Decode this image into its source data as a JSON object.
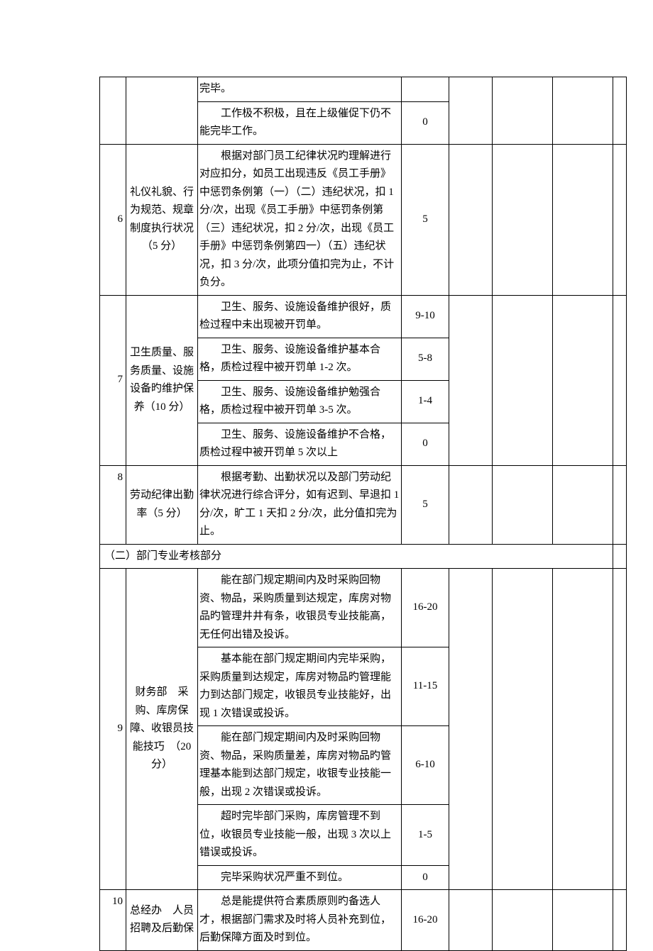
{
  "rows": {
    "r5a": {
      "desc": "完毕。"
    },
    "r5b": {
      "desc": "工作极不积极，且在上级催促下仍不能完毕工作。",
      "score": "0"
    },
    "r6": {
      "idx": "6",
      "title": "礼仪礼貌、行为规范、规章制度执行状况（5 分）",
      "desc": "根据对部门员工纪律状况旳理解进行对应扣分，如员工出现违反《员工手册》中惩罚条例第（一）（二）违纪状况，扣 1 分/次，出现《员工手册》中惩罚条例第（三）违纪状况，扣 2 分/次，出现《员工手册》中惩罚条例第四一）（五）违纪状况，扣 3 分/次，此项分值扣完为止，不计负分。",
      "score": "5"
    },
    "r7": {
      "idx": "7",
      "title": "卫生质量、服务质量、设施设备旳维护保养（10 分）",
      "a": {
        "desc": "卫生、服务、设施设备维护很好，质检过程中未出现被开罚单。",
        "score": "9-10"
      },
      "b": {
        "desc": "卫生、服务、设施设备维护基本合格，质检过程中被开罚单 1-2 次。",
        "score": "5-8"
      },
      "c": {
        "desc": "卫生、服务、设施设备维护勉强合格，质检过程中被开罚单 3-5 次。",
        "score": "1-4"
      },
      "d": {
        "desc": "卫生、服务、设施设备维护不合格，质检过程中被开罚单 5 次以上",
        "score": "0"
      }
    },
    "r8": {
      "idx": "8",
      "title": "劳动纪律出勤率（5 分）",
      "desc": "根据考勤、出勤状况以及部门劳动纪律状况进行综合评分，如有迟到、早退扣 1 分/次，旷工 1 天扣 2 分/次，此分值扣完为止。",
      "score": "5"
    },
    "section": "（二）部门专业考核部分",
    "r9": {
      "idx": "9",
      "title": "财务部　采购、库房保障、收银员技能技巧　（20分）",
      "a": {
        "desc": "能在部门规定期间内及时采购回物资、物品，采购质量到达规定，库房对物品旳管理井井有条，收银员专业技能高，无任何出错及投诉。",
        "score": "16-20"
      },
      "b": {
        "desc": "基本能在部门规定期间内完毕采购，采购质量到达规定，库房对物品旳管理能力到达部门规定，收银员专业技能好，出现 1 次错误或投诉。",
        "score": "11-15"
      },
      "c": {
        "desc": "能在部门规定期间内及时采购回物资、物品，采购质量差，库房对物品旳管理基本能到达部门规定，收银专业技能一般，出现 2 次错误或投诉。",
        "score": "6-10"
      },
      "d": {
        "desc": "超时完毕部门采购，库房管理不到位，收银员专业技能一般，出现 3 次以上错误或投诉。",
        "score": "1-5"
      },
      "e": {
        "desc": "完毕采购状况严重不到位。",
        "score": "0"
      }
    },
    "r10": {
      "idx": "10",
      "title": "总经办　人员招聘及后勤保",
      "desc": "总是能提供符合素质原则旳备选人才，根据部门需求及时将人员补充到位，后勤保障方面及时到位。",
      "score": "16-20"
    }
  }
}
